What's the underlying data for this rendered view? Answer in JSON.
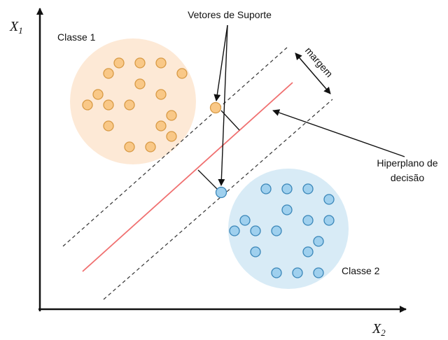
{
  "axes": {
    "y_label": {
      "symbol": "X",
      "subscript": "1"
    },
    "x_label": {
      "symbol": "X",
      "subscript": "2"
    }
  },
  "labels": {
    "class1": "Classe 1",
    "class2": "Classe 2",
    "support_vectors": "Vetores de Suporte",
    "margin": "margem",
    "hyperplane": [
      "Hiperplano de",
      "decisão"
    ]
  }
}
